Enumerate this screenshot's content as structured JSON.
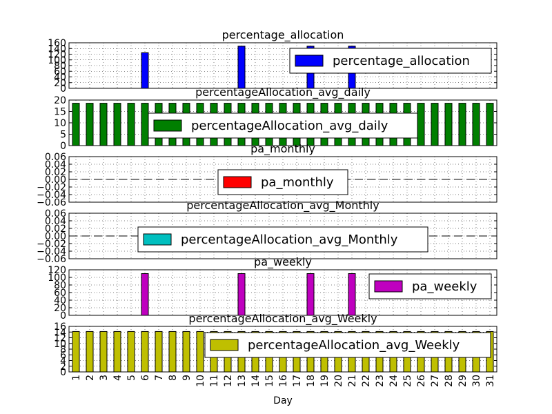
{
  "chart_data": {
    "type": "bar",
    "xlabel": "Day",
    "categories": [
      "1",
      "2",
      "3",
      "4",
      "5",
      "6",
      "7",
      "8",
      "9",
      "10",
      "11",
      "12",
      "13",
      "14",
      "15",
      "16",
      "17",
      "18",
      "19",
      "20",
      "21",
      "22",
      "23",
      "24",
      "25",
      "26",
      "27",
      "28",
      "29",
      "30",
      "31"
    ],
    "panels": [
      {
        "title": "percentage_allocation",
        "ylim": [
          0,
          160
        ],
        "yticks": [
          0,
          20,
          40,
          60,
          80,
          100,
          120,
          140,
          160
        ],
        "legend": "top-right",
        "series": [
          {
            "name": "percentage_allocation",
            "color": "#0000ff",
            "values": [
              0,
              0,
              0,
              0,
              0,
              125,
              0,
              0,
              0,
              0,
              0,
              0,
              148,
              0,
              0,
              0,
              0,
              148,
              0,
              0,
              148,
              0,
              0,
              0,
              0,
              0,
              0,
              0,
              0,
              0,
              0
            ]
          }
        ]
      },
      {
        "title": "percentageAllocation_avg_daily",
        "ylim": [
          0,
          20
        ],
        "yticks": [
          0,
          5,
          10,
          15,
          20
        ],
        "legend": "center",
        "series": [
          {
            "name": "percentageAllocation_avg_daily",
            "color": "#007f00",
            "values": [
              18.6,
              18.6,
              18.6,
              18.6,
              18.6,
              18.6,
              18.6,
              18.6,
              18.6,
              18.6,
              18.6,
              18.6,
              18.6,
              18.6,
              18.6,
              18.6,
              18.6,
              18.6,
              18.6,
              18.6,
              18.6,
              18.6,
              18.6,
              18.6,
              18.6,
              18.6,
              18.6,
              18.6,
              18.6,
              18.6,
              18.6
            ]
          }
        ]
      },
      {
        "title": "pa_monthly",
        "ylim": [
          -0.06,
          0.06
        ],
        "yticks": [
          -0.06,
          -0.04,
          -0.02,
          0.0,
          0.02,
          0.04,
          0.06
        ],
        "yticklabels": [
          "−0.06",
          "−0.04",
          "−0.02",
          "0.00",
          "0.02",
          "0.04",
          "0.06"
        ],
        "legend": "center",
        "series": [
          {
            "name": "pa_monthly",
            "color": "#ff0000",
            "values": [
              0,
              0,
              0,
              0,
              0,
              0,
              0,
              0,
              0,
              0,
              0,
              0,
              0,
              0,
              0,
              0,
              0,
              0,
              0,
              0,
              0,
              0,
              0,
              0,
              0,
              0,
              0,
              0,
              0,
              0,
              0
            ]
          }
        ]
      },
      {
        "title": "percentageAllocation_avg_Monthly",
        "ylim": [
          -0.06,
          0.06
        ],
        "yticks": [
          -0.06,
          -0.04,
          -0.02,
          0.0,
          0.02,
          0.04,
          0.06
        ],
        "yticklabels": [
          "−0.06",
          "−0.04",
          "−0.02",
          "0.00",
          "0.02",
          "0.04",
          "0.06"
        ],
        "legend": "center",
        "series": [
          {
            "name": "percentageAllocation_avg_Monthly",
            "color": "#00bfbf",
            "values": [
              0,
              0,
              0,
              0,
              0,
              0,
              0,
              0,
              0,
              0,
              0,
              0,
              0,
              0,
              0,
              0,
              0,
              0,
              0,
              0,
              0,
              0,
              0,
              0,
              0,
              0,
              0,
              0,
              0,
              0,
              0
            ]
          }
        ]
      },
      {
        "title": "pa_weekly",
        "ylim": [
          0,
          120
        ],
        "yticks": [
          0,
          20,
          40,
          60,
          80,
          100,
          120
        ],
        "legend": "right",
        "series": [
          {
            "name": "pa_weekly",
            "color": "#bf00bf",
            "values": [
              0,
              0,
              0,
              0,
              0,
              110,
              0,
              0,
              0,
              0,
              0,
              0,
              110,
              0,
              0,
              0,
              0,
              110,
              0,
              0,
              110,
              0,
              0,
              0,
              0,
              0,
              0,
              0,
              0,
              0,
              0
            ]
          }
        ]
      },
      {
        "title": "percentageAllocation_avg_Weekly",
        "ylim": [
          0,
          16
        ],
        "yticks": [
          0,
          2,
          4,
          6,
          8,
          10,
          12,
          14,
          16
        ],
        "legend": "top-right",
        "series": [
          {
            "name": "percentageAllocation_avg_Weekly",
            "color": "#bfbf00",
            "values": [
              14.2,
              14.2,
              14.2,
              14.2,
              14.2,
              14.2,
              14.2,
              14.2,
              14.2,
              14.2,
              14.2,
              14.2,
              14.2,
              14.2,
              14.2,
              14.2,
              14.2,
              14.2,
              14.2,
              14.2,
              14.2,
              14.2,
              14.2,
              14.2,
              14.2,
              14.2,
              14.2,
              14.2,
              14.2,
              14.2,
              14.2
            ]
          }
        ]
      }
    ]
  }
}
